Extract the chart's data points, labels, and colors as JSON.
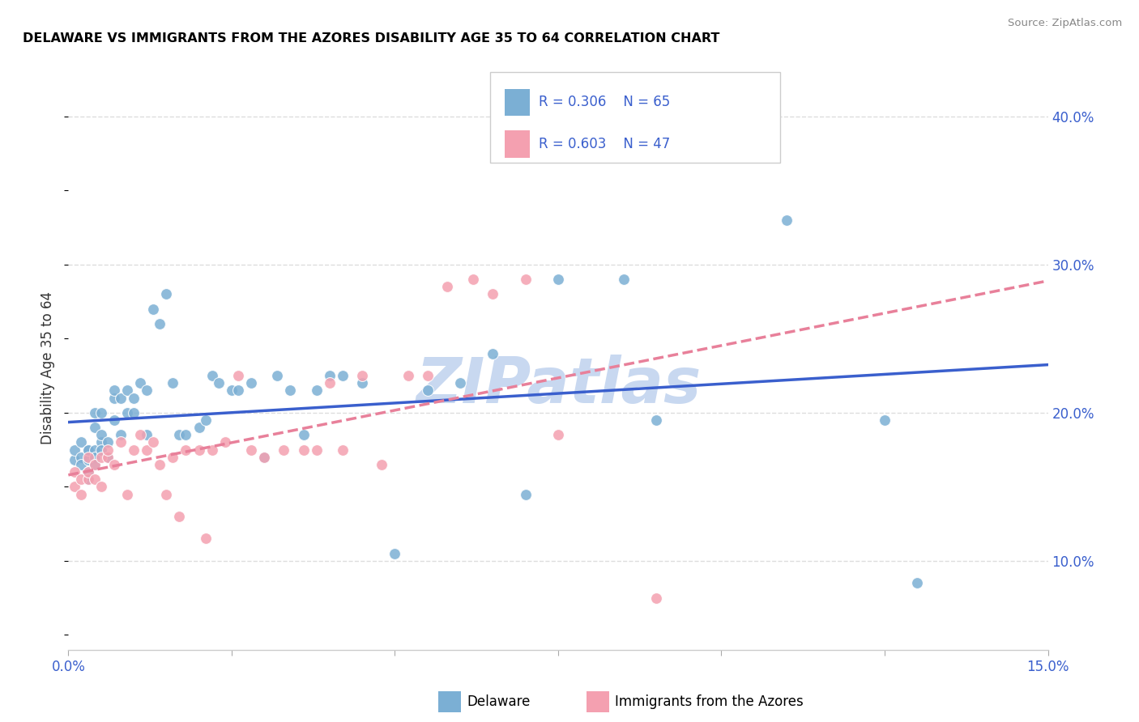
{
  "title": "DELAWARE VS IMMIGRANTS FROM THE AZORES DISABILITY AGE 35 TO 64 CORRELATION CHART",
  "source": "Source: ZipAtlas.com",
  "ylabel_label": "Disability Age 35 to 64",
  "xlim": [
    0.0,
    0.15
  ],
  "ylim": [
    0.04,
    0.42
  ],
  "xticks": [
    0.0,
    0.025,
    0.05,
    0.075,
    0.1,
    0.125,
    0.15
  ],
  "xtick_labels": [
    "0.0%",
    "",
    "",
    "",
    "",
    "",
    "15.0%"
  ],
  "yticks_right": [
    0.1,
    0.2,
    0.3,
    0.4
  ],
  "ytick_labels_right": [
    "10.0%",
    "20.0%",
    "30.0%",
    "40.0%"
  ],
  "grid_color": "#dddddd",
  "background_color": "#ffffff",
  "watermark": "ZIPatlas",
  "watermark_color": "#c8d8f0",
  "delaware_color": "#7bafd4",
  "azores_color": "#f4a0b0",
  "delaware_line_color": "#3a5fcd",
  "azores_line_color": "#e8809a",
  "R_delaware": 0.306,
  "N_delaware": 65,
  "R_azores": 0.603,
  "N_azores": 47,
  "delaware_x": [
    0.001,
    0.001,
    0.002,
    0.002,
    0.002,
    0.003,
    0.003,
    0.003,
    0.003,
    0.003,
    0.004,
    0.004,
    0.004,
    0.004,
    0.004,
    0.005,
    0.005,
    0.005,
    0.005,
    0.006,
    0.006,
    0.007,
    0.007,
    0.007,
    0.008,
    0.008,
    0.009,
    0.009,
    0.01,
    0.01,
    0.011,
    0.012,
    0.012,
    0.013,
    0.014,
    0.015,
    0.016,
    0.017,
    0.018,
    0.02,
    0.021,
    0.022,
    0.023,
    0.025,
    0.026,
    0.028,
    0.03,
    0.032,
    0.034,
    0.036,
    0.038,
    0.04,
    0.042,
    0.045,
    0.05,
    0.055,
    0.06,
    0.065,
    0.07,
    0.075,
    0.085,
    0.09,
    0.11,
    0.125,
    0.13
  ],
  "delaware_y": [
    0.168,
    0.175,
    0.17,
    0.165,
    0.18,
    0.168,
    0.175,
    0.16,
    0.155,
    0.175,
    0.175,
    0.17,
    0.165,
    0.2,
    0.19,
    0.18,
    0.175,
    0.185,
    0.2,
    0.18,
    0.17,
    0.21,
    0.195,
    0.215,
    0.21,
    0.185,
    0.2,
    0.215,
    0.2,
    0.21,
    0.22,
    0.215,
    0.185,
    0.27,
    0.26,
    0.28,
    0.22,
    0.185,
    0.185,
    0.19,
    0.195,
    0.225,
    0.22,
    0.215,
    0.215,
    0.22,
    0.17,
    0.225,
    0.215,
    0.185,
    0.215,
    0.225,
    0.225,
    0.22,
    0.105,
    0.215,
    0.22,
    0.24,
    0.145,
    0.29,
    0.29,
    0.195,
    0.33,
    0.195,
    0.085
  ],
  "azores_x": [
    0.001,
    0.001,
    0.002,
    0.002,
    0.003,
    0.003,
    0.003,
    0.004,
    0.004,
    0.005,
    0.005,
    0.006,
    0.006,
    0.007,
    0.008,
    0.009,
    0.01,
    0.011,
    0.012,
    0.013,
    0.014,
    0.015,
    0.016,
    0.017,
    0.018,
    0.02,
    0.021,
    0.022,
    0.024,
    0.026,
    0.028,
    0.03,
    0.033,
    0.036,
    0.038,
    0.04,
    0.042,
    0.045,
    0.048,
    0.052,
    0.055,
    0.058,
    0.062,
    0.065,
    0.07,
    0.075,
    0.09
  ],
  "azores_y": [
    0.15,
    0.16,
    0.155,
    0.145,
    0.155,
    0.17,
    0.16,
    0.155,
    0.165,
    0.15,
    0.17,
    0.17,
    0.175,
    0.165,
    0.18,
    0.145,
    0.175,
    0.185,
    0.175,
    0.18,
    0.165,
    0.145,
    0.17,
    0.13,
    0.175,
    0.175,
    0.115,
    0.175,
    0.18,
    0.225,
    0.175,
    0.17,
    0.175,
    0.175,
    0.175,
    0.22,
    0.175,
    0.225,
    0.165,
    0.225,
    0.225,
    0.285,
    0.29,
    0.28,
    0.29,
    0.185,
    0.075
  ]
}
